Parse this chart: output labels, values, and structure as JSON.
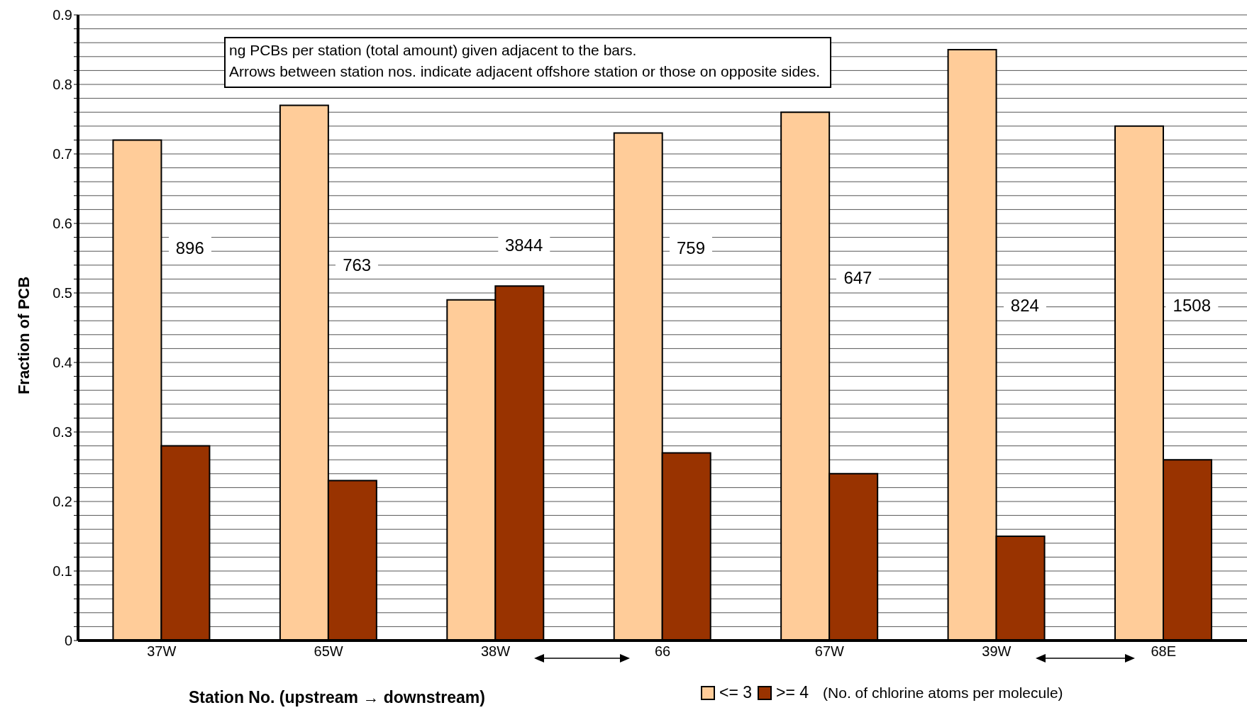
{
  "chart_data": {
    "type": "bar",
    "ylabel": "Fraction of PCB",
    "xlabel": "Station No. (upstream → downstream)",
    "legend_title": "(No. of chlorine atoms per molecule)",
    "categories": [
      "37W",
      "65W",
      "38W",
      "66",
      "67W",
      "39W",
      "68E"
    ],
    "series": [
      {
        "name": "<= 3",
        "color": "#ffcc99",
        "values": [
          0.72,
          0.77,
          0.49,
          0.73,
          0.76,
          0.85,
          0.74
        ]
      },
      {
        "name": ">= 4",
        "color": "#993300",
        "values": [
          0.28,
          0.23,
          0.51,
          0.27,
          0.24,
          0.15,
          0.26
        ]
      }
    ],
    "ylim": [
      0,
      0.9
    ],
    "yticks": [
      0,
      {
        "value": 0.02,
        "label": null
      },
      {
        "value": 0.04,
        "label": null
      },
      {
        "value": 0.06,
        "label": null
      },
      {
        "value": 0.08,
        "label": null
      },
      0.1,
      {
        "value": 0.12,
        "label": null
      },
      {
        "value": 0.14,
        "label": null
      },
      {
        "value": 0.16,
        "label": null
      },
      {
        "value": 0.18,
        "label": null
      },
      0.2,
      {
        "value": 0.22,
        "label": null
      },
      {
        "value": 0.24,
        "label": null
      },
      {
        "value": 0.26,
        "label": null
      },
      {
        "value": 0.28,
        "label": null
      },
      0.3,
      {
        "value": 0.32,
        "label": null
      },
      {
        "value": 0.34,
        "label": null
      },
      {
        "value": 0.36,
        "label": null
      },
      {
        "value": 0.38,
        "label": null
      },
      0.4,
      {
        "value": 0.42,
        "label": null
      },
      {
        "value": 0.44,
        "label": null
      },
      {
        "value": 0.46,
        "label": null
      },
      {
        "value": 0.48,
        "label": null
      },
      0.5,
      {
        "value": 0.52,
        "label": null
      },
      {
        "value": 0.54,
        "label": null
      },
      {
        "value": 0.56,
        "label": null
      },
      {
        "value": 0.58,
        "label": null
      },
      0.6,
      {
        "value": 0.62,
        "label": null
      },
      {
        "value": 0.64,
        "label": null
      },
      {
        "value": 0.66,
        "label": null
      },
      {
        "value": 0.68,
        "label": null
      },
      0.7,
      {
        "value": 0.72,
        "label": null
      },
      {
        "value": 0.74,
        "label": null
      },
      {
        "value": 0.76,
        "label": null
      },
      {
        "value": 0.78,
        "label": null
      },
      0.8,
      {
        "value": 0.82,
        "label": null
      },
      {
        "value": 0.84,
        "label": null
      },
      {
        "value": 0.86,
        "label": null
      },
      {
        "value": 0.88,
        "label": null
      },
      0.9
    ],
    "grid": "y",
    "legend": "bottom",
    "annotations": [
      "ng PCBs per station (total amount) given adjacent to the bars.\nArrows between station nos. indicate adjacent offshore station or those on opposite sides.",
      "896",
      "763",
      "3844",
      "759",
      "647",
      "824",
      "1508"
    ]
  }
}
